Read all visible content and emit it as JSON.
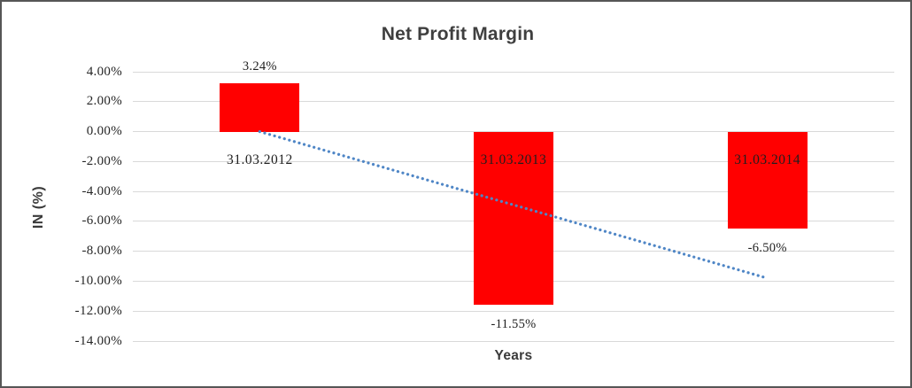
{
  "chart_data": {
    "type": "bar",
    "title": "Net Profit Margin",
    "xlabel": "Years",
    "ylabel": "IN (%)",
    "categories": [
      "31.03.2012",
      "31.03.2013",
      "31.03.2014"
    ],
    "values": [
      3.24,
      -11.55,
      -6.5
    ],
    "data_labels": [
      "3.24%",
      "-11.55%",
      "-6.50%"
    ],
    "series_name": "Net Profit Margin",
    "ylim": [
      -14,
      4
    ],
    "ytick_step": 2,
    "yticks": [
      {
        "value": 4,
        "label": "4.00%"
      },
      {
        "value": 2,
        "label": "2.00%"
      },
      {
        "value": 0,
        "label": "0.00%"
      },
      {
        "value": -2,
        "label": "-2.00%"
      },
      {
        "value": -4,
        "label": "-4.00%"
      },
      {
        "value": -6,
        "label": "-6.00%"
      },
      {
        "value": -8,
        "label": "-8.00%"
      },
      {
        "value": -10,
        "label": "-10.00%"
      },
      {
        "value": -12,
        "label": "-12.00%"
      },
      {
        "value": -14,
        "label": "-14.00%"
      }
    ],
    "grid": true,
    "legend": false,
    "colors": {
      "bar": "#FF0000",
      "trendline": "#4F86C6",
      "gridline": "#d9d9d9",
      "title_text": "#3f3f3f",
      "label_text": "#1f1f1f"
    },
    "trendline": {
      "shape": "linear",
      "style": "dotted",
      "start": {
        "category_index": 0,
        "value": 0.0
      },
      "end": {
        "category_index": 2,
        "value": -9.8
      }
    }
  }
}
